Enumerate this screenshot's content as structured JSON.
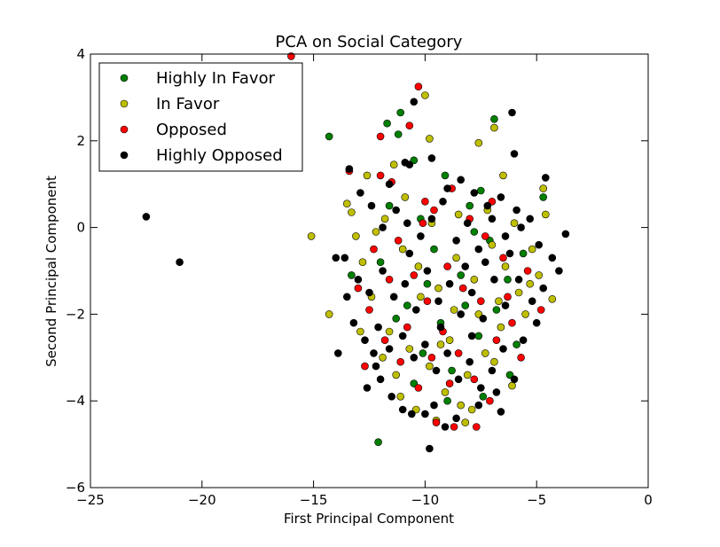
{
  "chart_data": {
    "type": "scatter",
    "title": "PCA on Social Category",
    "xlabel": "First Principal Component",
    "ylabel": "Second Principal Component",
    "xlim": [
      -25,
      0
    ],
    "ylim": [
      -6,
      4
    ],
    "xticks": [
      -25,
      -20,
      -15,
      -10,
      -5,
      0
    ],
    "yticks": [
      -6,
      -4,
      -2,
      0,
      2,
      4
    ],
    "xtick_labels": [
      "−25",
      "−20",
      "−15",
      "−10",
      "−5",
      "0"
    ],
    "ytick_labels": [
      "−6",
      "−4",
      "−2",
      "0",
      "2",
      "4"
    ],
    "grid": false,
    "legend_position": "top-left",
    "series": [
      {
        "name": "Highly In Favor",
        "color": "#007f00",
        "points": [
          [
            -14.3,
            2.1
          ],
          [
            -11.7,
            2.4
          ],
          [
            -11.1,
            2.65
          ],
          [
            -11.2,
            2.15
          ],
          [
            -10.5,
            1.55
          ],
          [
            -12.1,
            -4.95
          ],
          [
            -6.9,
            2.5
          ],
          [
            -4.7,
            0.7
          ],
          [
            -13.3,
            -1.1
          ],
          [
            -11.6,
            0.5
          ],
          [
            -10.2,
            0.2
          ],
          [
            -9.1,
            1.2
          ],
          [
            -8.0,
            0.5
          ],
          [
            -7.5,
            0.85
          ],
          [
            -9.6,
            -0.5
          ],
          [
            -8.4,
            -1.1
          ],
          [
            -7.1,
            -0.3
          ],
          [
            -6.3,
            -1.2
          ],
          [
            -5.6,
            -0.6
          ],
          [
            -10.8,
            -1.8
          ],
          [
            -9.3,
            -2.2
          ],
          [
            -7.6,
            -2.5
          ],
          [
            -6.2,
            -3.4
          ],
          [
            -11.3,
            -2.1
          ],
          [
            -10.1,
            -2.9
          ],
          [
            -8.8,
            -3.3
          ],
          [
            -7.4,
            -3.9
          ],
          [
            -9.9,
            -1.3
          ],
          [
            -8.2,
            -1.8
          ],
          [
            -12.0,
            -0.8
          ],
          [
            -6.8,
            -1.9
          ],
          [
            -5.9,
            -2.7
          ],
          [
            -9.0,
            -4.0
          ],
          [
            -10.5,
            -3.6
          ],
          [
            -7.8,
            -0.1
          ]
        ]
      },
      {
        "name": "In Favor",
        "color": "#bfbf00",
        "points": [
          [
            -10.0,
            3.05
          ],
          [
            -15.1,
            -0.2
          ],
          [
            -14.3,
            -2.0
          ],
          [
            -9.8,
            2.05
          ],
          [
            -11.4,
            1.45
          ],
          [
            -7.6,
            1.95
          ],
          [
            -6.9,
            2.3
          ],
          [
            -6.5,
            1.2
          ],
          [
            -12.6,
            1.2
          ],
          [
            -4.7,
            0.9
          ],
          [
            -4.6,
            0.3
          ],
          [
            -4.3,
            -1.65
          ],
          [
            -6.1,
            -3.65
          ],
          [
            -9.5,
            -4.45
          ],
          [
            -8.2,
            -4.5
          ],
          [
            -11.1,
            -3.9
          ],
          [
            -13.5,
            0.55
          ],
          [
            -13.1,
            -0.2
          ],
          [
            -13.3,
            0.35
          ],
          [
            -12.2,
            -0.1
          ],
          [
            -11.0,
            -0.5
          ],
          [
            -10.3,
            -0.9
          ],
          [
            -9.4,
            -1.4
          ],
          [
            -8.6,
            -0.7
          ],
          [
            -7.8,
            -1.2
          ],
          [
            -7.0,
            -0.4
          ],
          [
            -6.4,
            -0.9
          ],
          [
            -5.8,
            -1.5
          ],
          [
            -5.2,
            -0.5
          ],
          [
            -4.9,
            -1.1
          ],
          [
            -12.4,
            -1.6
          ],
          [
            -11.6,
            -2.4
          ],
          [
            -10.7,
            -2.8
          ],
          [
            -9.8,
            -3.2
          ],
          [
            -8.9,
            -2.6
          ],
          [
            -8.1,
            -3.4
          ],
          [
            -7.3,
            -2.9
          ],
          [
            -6.6,
            -2.3
          ],
          [
            -12.8,
            -0.8
          ],
          [
            -11.9,
            -3.0
          ],
          [
            -10.4,
            -4.2
          ],
          [
            -9.1,
            -3.8
          ],
          [
            -7.9,
            -4.2
          ],
          [
            -6.7,
            -1.7
          ],
          [
            -5.5,
            -2.0
          ],
          [
            -10.9,
            0.7
          ],
          [
            -9.7,
            0.1
          ],
          [
            -8.5,
            0.3
          ],
          [
            -7.2,
            0.4
          ],
          [
            -6.0,
            0.1
          ],
          [
            -11.8,
            0.2
          ],
          [
            -10.2,
            -1.6
          ],
          [
            -8.7,
            -1.9
          ],
          [
            -7.6,
            -2.0
          ],
          [
            -12.9,
            -2.4
          ],
          [
            -11.3,
            -3.4
          ],
          [
            -9.3,
            -2.7
          ],
          [
            -8.4,
            -4.1
          ],
          [
            -6.9,
            -3.1
          ],
          [
            -5.3,
            -1.3
          ]
        ]
      },
      {
        "name": "Opposed",
        "color": "#ff0000",
        "points": [
          [
            -16.0,
            3.95
          ],
          [
            -10.3,
            3.25
          ],
          [
            -10.7,
            2.35
          ],
          [
            -12.0,
            2.1
          ],
          [
            -13.4,
            1.3
          ],
          [
            -12.0,
            1.2
          ],
          [
            -11.5,
            1.05
          ],
          [
            -10.0,
            0.6
          ],
          [
            -9.6,
            0.4
          ],
          [
            -8.8,
            0.9
          ],
          [
            -8.0,
            0.2
          ],
          [
            -7.3,
            -0.2
          ],
          [
            -6.5,
            -0.7
          ],
          [
            -5.4,
            -1.0
          ],
          [
            -4.8,
            -1.9
          ],
          [
            -11.2,
            -0.3
          ],
          [
            -10.5,
            -1.1
          ],
          [
            -9.9,
            -1.7
          ],
          [
            -9.2,
            -2.4
          ],
          [
            -8.5,
            -2.9
          ],
          [
            -7.8,
            -3.5
          ],
          [
            -7.1,
            -4.0
          ],
          [
            -9.5,
            -4.5
          ],
          [
            -8.7,
            -4.6
          ],
          [
            -7.7,
            -4.6
          ],
          [
            -12.5,
            -1.9
          ],
          [
            -11.8,
            -2.6
          ],
          [
            -11.1,
            -3.1
          ],
          [
            -10.3,
            -3.7
          ],
          [
            -12.3,
            -0.5
          ],
          [
            -13.0,
            -1.4
          ],
          [
            -6.8,
            -2.6
          ],
          [
            -6.1,
            -2.2
          ],
          [
            -5.7,
            -3.0
          ],
          [
            -8.3,
            -1.4
          ],
          [
            -9.0,
            -0.9
          ],
          [
            -7.5,
            -1.7
          ],
          [
            -10.8,
            -2.3
          ],
          [
            -11.6,
            -1.2
          ],
          [
            -6.3,
            -1.6
          ],
          [
            -9.7,
            -3.0
          ],
          [
            -8.9,
            -3.6
          ],
          [
            -10.1,
            0.1
          ],
          [
            -7.0,
            0.6
          ],
          [
            -12.7,
            -3.2
          ]
        ]
      },
      {
        "name": "Highly Opposed",
        "color": "#000000",
        "points": [
          [
            -22.5,
            0.25
          ],
          [
            -21.0,
            -0.8
          ],
          [
            -13.9,
            -2.9
          ],
          [
            -12.2,
            -3.2
          ],
          [
            -9.8,
            -5.1
          ],
          [
            -6.1,
            2.65
          ],
          [
            -6.0,
            1.7
          ],
          [
            -4.6,
            1.15
          ],
          [
            -3.7,
            -0.15
          ],
          [
            -10.5,
            2.9
          ],
          [
            -10.7,
            1.45
          ],
          [
            -9.7,
            1.6
          ],
          [
            -11.0,
            -4.2
          ],
          [
            -6.6,
            -4.25
          ],
          [
            -13.4,
            1.35
          ],
          [
            -12.9,
            0.8
          ],
          [
            -12.4,
            0.5
          ],
          [
            -11.9,
            0.0
          ],
          [
            -11.3,
            0.4
          ],
          [
            -10.8,
            0.1
          ],
          [
            -10.2,
            -0.2
          ],
          [
            -9.7,
            0.2
          ],
          [
            -9.2,
            0.6
          ],
          [
            -8.6,
            -0.3
          ],
          [
            -8.1,
            0.1
          ],
          [
            -7.6,
            -0.5
          ],
          [
            -7.0,
            0.2
          ],
          [
            -6.4,
            -0.2
          ],
          [
            -5.9,
            0.4
          ],
          [
            -5.3,
            0.2
          ],
          [
            -4.9,
            -0.4
          ],
          [
            -4.3,
            -0.7
          ],
          [
            -4.0,
            -1.0
          ],
          [
            -13.6,
            -0.7
          ],
          [
            -13.0,
            -1.2
          ],
          [
            -12.5,
            -1.5
          ],
          [
            -11.9,
            -1.0
          ],
          [
            -11.4,
            -1.6
          ],
          [
            -10.9,
            -1.3
          ],
          [
            -10.4,
            -1.9
          ],
          [
            -9.9,
            -1.0
          ],
          [
            -9.4,
            -1.7
          ],
          [
            -8.9,
            -1.3
          ],
          [
            -8.4,
            -2.0
          ],
          [
            -7.9,
            -1.5
          ],
          [
            -7.4,
            -2.1
          ],
          [
            -6.9,
            -1.2
          ],
          [
            -6.4,
            -1.8
          ],
          [
            -5.8,
            -1.2
          ],
          [
            -5.2,
            -1.7
          ],
          [
            -4.7,
            -1.4
          ],
          [
            -13.2,
            -2.2
          ],
          [
            -12.7,
            -2.6
          ],
          [
            -12.1,
            -2.3
          ],
          [
            -11.6,
            -2.8
          ],
          [
            -11.0,
            -2.5
          ],
          [
            -10.5,
            -3.0
          ],
          [
            -10.0,
            -2.7
          ],
          [
            -9.5,
            -3.3
          ],
          [
            -9.0,
            -2.9
          ],
          [
            -8.5,
            -3.5
          ],
          [
            -8.0,
            -3.1
          ],
          [
            -7.5,
            -3.7
          ],
          [
            -7.0,
            -3.3
          ],
          [
            -6.5,
            -2.8
          ],
          [
            -6.0,
            -3.5
          ],
          [
            -5.6,
            -2.6
          ],
          [
            -5.0,
            -2.2
          ],
          [
            -12.6,
            -3.7
          ],
          [
            -11.5,
            -3.9
          ],
          [
            -10.6,
            -4.3
          ],
          [
            -9.6,
            -4.1
          ],
          [
            -8.6,
            -4.4
          ],
          [
            -7.6,
            -4.1
          ],
          [
            -6.8,
            -3.8
          ],
          [
            -9.1,
            -4.6
          ],
          [
            -10.0,
            -4.3
          ],
          [
            -12.0,
            -3.5
          ],
          [
            -8.2,
            -0.9
          ],
          [
            -7.3,
            -0.8
          ],
          [
            -9.0,
            0.9
          ],
          [
            -8.4,
            1.1
          ],
          [
            -7.8,
            0.8
          ],
          [
            -7.2,
            0.5
          ],
          [
            -6.6,
            0.7
          ],
          [
            -5.7,
            0.0
          ],
          [
            -11.6,
            1.0
          ],
          [
            -10.9,
            1.5
          ],
          [
            -12.3,
            -2.9
          ],
          [
            -13.5,
            -1.6
          ],
          [
            -14.0,
            -0.7
          ],
          [
            -6.2,
            -0.6
          ],
          [
            -7.9,
            -2.5
          ],
          [
            -9.3,
            -2.3
          ],
          [
            -10.7,
            -0.6
          ]
        ]
      }
    ]
  }
}
